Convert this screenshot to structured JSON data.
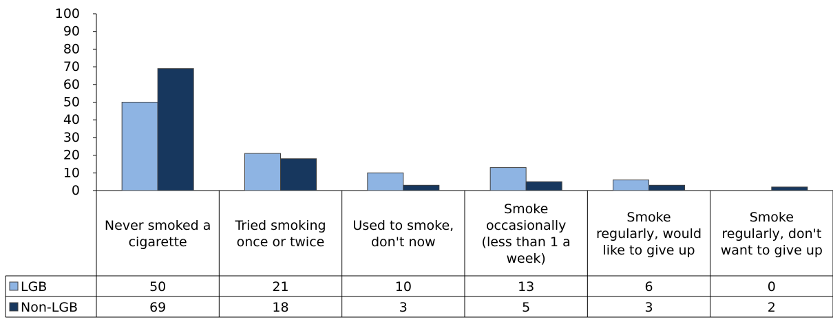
{
  "chart_data": {
    "type": "bar",
    "categories": [
      "Never smoked a cigarette",
      "Tried smoking once or twice",
      "Used to smoke, don't now",
      "Smoke occasionally (less than 1 a week)",
      "Smoke regularly, would like to give up",
      "Smoke regularly, don't want to give up"
    ],
    "category_lines": [
      [
        "Never smoked a",
        "cigarette"
      ],
      [
        "Tried smoking",
        "once or twice"
      ],
      [
        "Used to smoke,",
        "don't now"
      ],
      [
        "Smoke",
        "occasionally",
        "(less than 1 a",
        "week)"
      ],
      [
        "Smoke",
        "regularly, would",
        "like to give up"
      ],
      [
        "Smoke",
        "regularly, don't",
        "want to give up"
      ]
    ],
    "series": [
      {
        "name": "LGB",
        "values": [
          50,
          21,
          10,
          13,
          6,
          0
        ],
        "color": "#8eb4e3"
      },
      {
        "name": "Non-LGB",
        "values": [
          69,
          18,
          3,
          5,
          3,
          2
        ],
        "color": "#17375e"
      }
    ],
    "ylim": [
      0,
      100
    ],
    "yticks": [
      0,
      10,
      20,
      30,
      40,
      50,
      60,
      70,
      80,
      90,
      100
    ],
    "grid": false,
    "legend": "data-table",
    "title": "",
    "xlabel": "",
    "ylabel": ""
  }
}
